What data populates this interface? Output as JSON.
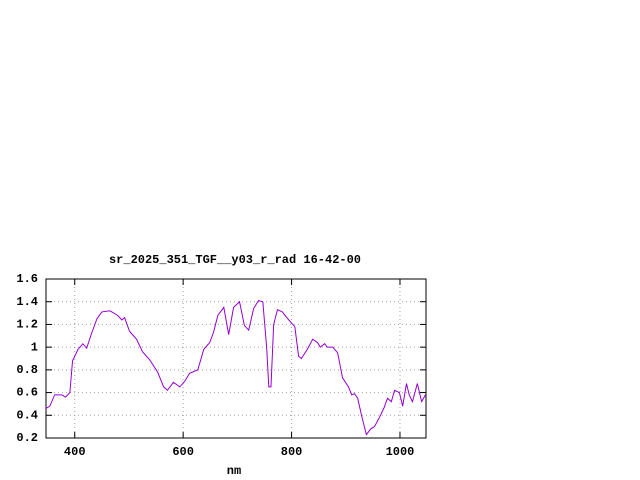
{
  "chart_data": {
    "type": "line",
    "title": "sr_2025_351_TGF__y03_r_rad 16-42-00",
    "x_label": "nm",
    "series": [
      {
        "color": "#9400d3",
        "x": [
          347,
          354,
          363,
          376,
          383,
          391,
          396,
          406,
          415,
          422,
          431,
          441,
          450,
          465,
          479,
          487,
          492,
          501,
          514,
          525,
          538,
          553,
          564,
          571,
          582,
          594,
          603,
          612,
          627,
          638,
          649,
          656,
          664,
          675,
          684,
          693,
          704,
          713,
          721,
          730,
          739,
          747,
          754,
          758,
          762,
          767,
          774,
          783,
          793,
          806,
          813,
          818,
          829,
          839,
          848,
          853,
          861,
          866,
          876,
          885,
          894,
          905,
          911,
          916,
          922,
          929,
          938,
          946,
          953,
          962,
          971,
          977,
          984,
          990,
          999,
          1005,
          1012,
          1017,
          1023,
          1032,
          1040,
          1047
        ],
        "values": [
          0.46,
          0.48,
          0.58,
          0.58,
          0.56,
          0.6,
          0.88,
          0.98,
          1.03,
          0.99,
          1.12,
          1.25,
          1.31,
          1.32,
          1.28,
          1.24,
          1.26,
          1.14,
          1.07,
          0.96,
          0.89,
          0.78,
          0.65,
          0.62,
          0.69,
          0.65,
          0.7,
          0.77,
          0.8,
          0.98,
          1.04,
          1.13,
          1.28,
          1.35,
          1.11,
          1.35,
          1.4,
          1.19,
          1.15,
          1.34,
          1.41,
          1.4,
          1.0,
          0.65,
          0.65,
          1.2,
          1.33,
          1.31,
          1.25,
          1.18,
          0.92,
          0.9,
          0.98,
          1.07,
          1.04,
          1.0,
          1.03,
          1.0,
          1.0,
          0.95,
          0.73,
          0.65,
          0.58,
          0.59,
          0.55,
          0.4,
          0.23,
          0.28,
          0.3,
          0.38,
          0.47,
          0.55,
          0.52,
          0.62,
          0.6,
          0.48,
          0.68,
          0.58,
          0.52,
          0.68,
          0.52,
          0.58
        ]
      }
    ],
    "xlim": [
      347,
      1048
    ],
    "xticks": [
      400,
      600,
      800,
      1000
    ],
    "ylim": [
      0.2,
      1.6
    ],
    "yticks": [
      0.2,
      0.4,
      0.6,
      0.8,
      1,
      1.2,
      1.4,
      1.6
    ],
    "grid": true
  }
}
